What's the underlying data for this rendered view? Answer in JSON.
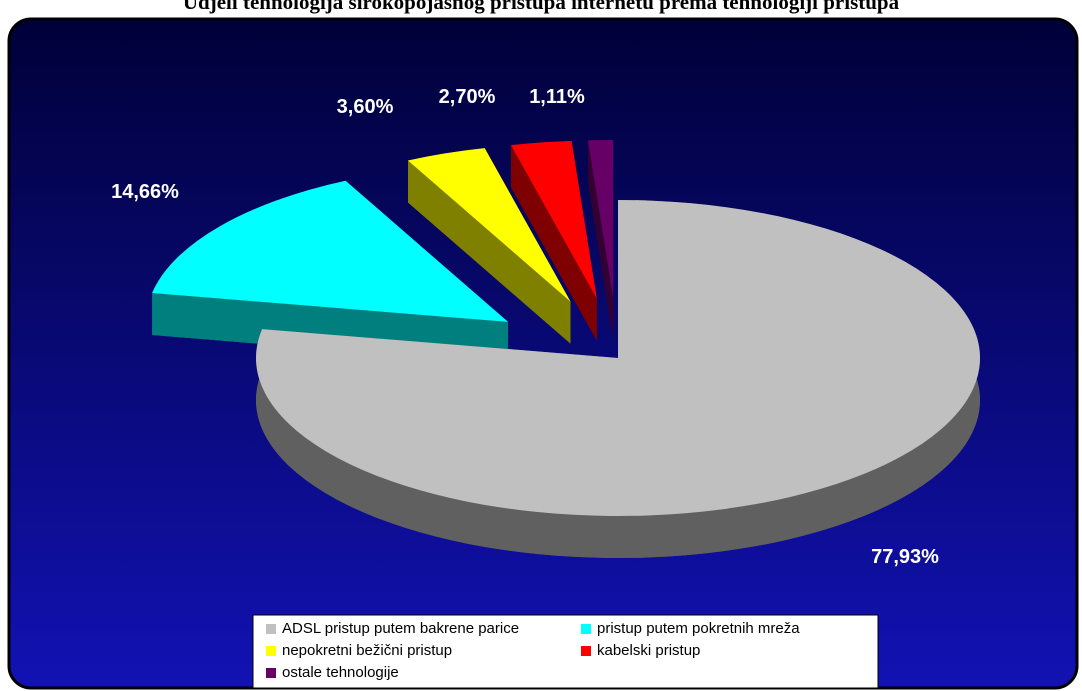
{
  "chart_data": {
    "type": "pie3d",
    "title": "Udjeli tehnologija širokopojasnog pristupa internetu prema tehnologiji pristupa",
    "categories": [
      "ADSL pristup putem bakrene parice",
      "pristup putem pokretnih mreža",
      "nepokretni bežični pristup",
      "kabelski pristup",
      "ostale tehnologije"
    ],
    "values": [
      77.93,
      14.66,
      3.6,
      2.7,
      1.11
    ],
    "value_labels": [
      "77,93%",
      "14,66%",
      "3,60%",
      "2,70%",
      "1,11%"
    ],
    "colors": [
      "#c0c0c0",
      "#00ffff",
      "#ffff00",
      "#ff0000",
      "#660066"
    ]
  }
}
